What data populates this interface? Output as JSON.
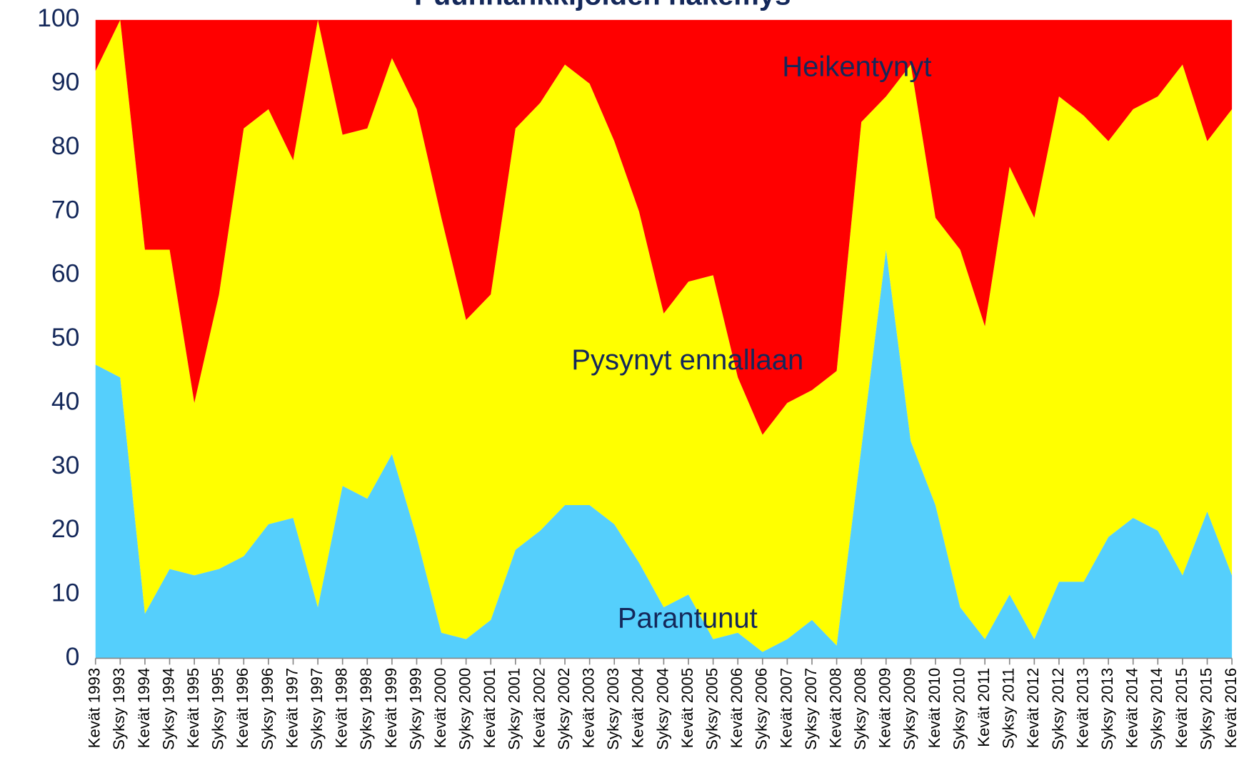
{
  "chart_data": {
    "type": "stacked_area",
    "title": "Puunhankkijoiden näkemys",
    "categories": [
      "Kevät 1993",
      "Syksy 1993",
      "Kevät 1994",
      "Syksy 1994",
      "Kevät 1995",
      "Syksy 1995",
      "Kevät 1996",
      "Syksy 1996",
      "Kevät 1997",
      "Syksy 1997",
      "Kevät 1998",
      "Syksy 1998",
      "Kevät 1999",
      "Syksy 1999",
      "Kevät 2000",
      "Syksy 2000",
      "Kevät 2001",
      "Syksy 2001",
      "Kevät 2002",
      "Syksy 2002",
      "Kevät 2003",
      "Syksy 2003",
      "Kevät 2004",
      "Syksy 2004",
      "Kevät 2005",
      "Syksy 2005",
      "Kevät 2006",
      "Syksy 2006",
      "Kevät 2007",
      "Syksy 2007",
      "Kevät 2008",
      "Syksy 2008",
      "Kevät 2009",
      "Syksy 2009",
      "Kevät 2010",
      "Syksy 2010",
      "Kevät 2011",
      "Syksy 2011",
      "Kevät 2012",
      "Syksy 2012",
      "Kevät 2013",
      "Syksy 2013",
      "Kevät 2014",
      "Syksy 2014",
      "Kevät 2015",
      "Syksy 2015",
      "Kevät 2016"
    ],
    "series": [
      {
        "name": "Parantunut",
        "color": "#55cffc",
        "values": [
          46,
          44,
          7,
          14,
          13,
          14,
          16,
          21,
          22,
          8,
          27,
          25,
          32,
          19,
          4,
          3,
          6,
          17,
          20,
          24,
          24,
          21,
          15,
          8,
          10,
          3,
          4,
          1,
          3,
          6,
          2,
          33,
          64,
          34,
          24,
          8,
          3,
          10,
          3,
          12,
          12,
          19,
          22,
          20,
          13,
          23,
          13
        ]
      },
      {
        "name": "Pysynyt ennallaan",
        "color": "#ffff00",
        "values": [
          46,
          56,
          57,
          50,
          27,
          43,
          67,
          65,
          56,
          92,
          55,
          58,
          62,
          67,
          65,
          50,
          51,
          66,
          67,
          69,
          66,
          60,
          55,
          46,
          49,
          57,
          40,
          34,
          37,
          36,
          43,
          51,
          24,
          59,
          45,
          56,
          49,
          67,
          66,
          76,
          73,
          62,
          64,
          68,
          80,
          58,
          73
        ]
      },
      {
        "name": "Heikentynyt",
        "color": "#ff0000",
        "values": [
          8,
          0,
          36,
          36,
          60,
          43,
          17,
          14,
          22,
          0,
          18,
          17,
          6,
          14,
          31,
          47,
          43,
          17,
          13,
          7,
          10,
          19,
          30,
          46,
          41,
          40,
          56,
          65,
          60,
          58,
          55,
          16,
          12,
          7,
          31,
          36,
          48,
          23,
          31,
          12,
          15,
          19,
          14,
          12,
          7,
          19,
          14
        ]
      }
    ],
    "ylim": [
      0,
      100
    ],
    "yticks": [
      0,
      10,
      20,
      30,
      40,
      50,
      60,
      70,
      80,
      90,
      100
    ]
  }
}
